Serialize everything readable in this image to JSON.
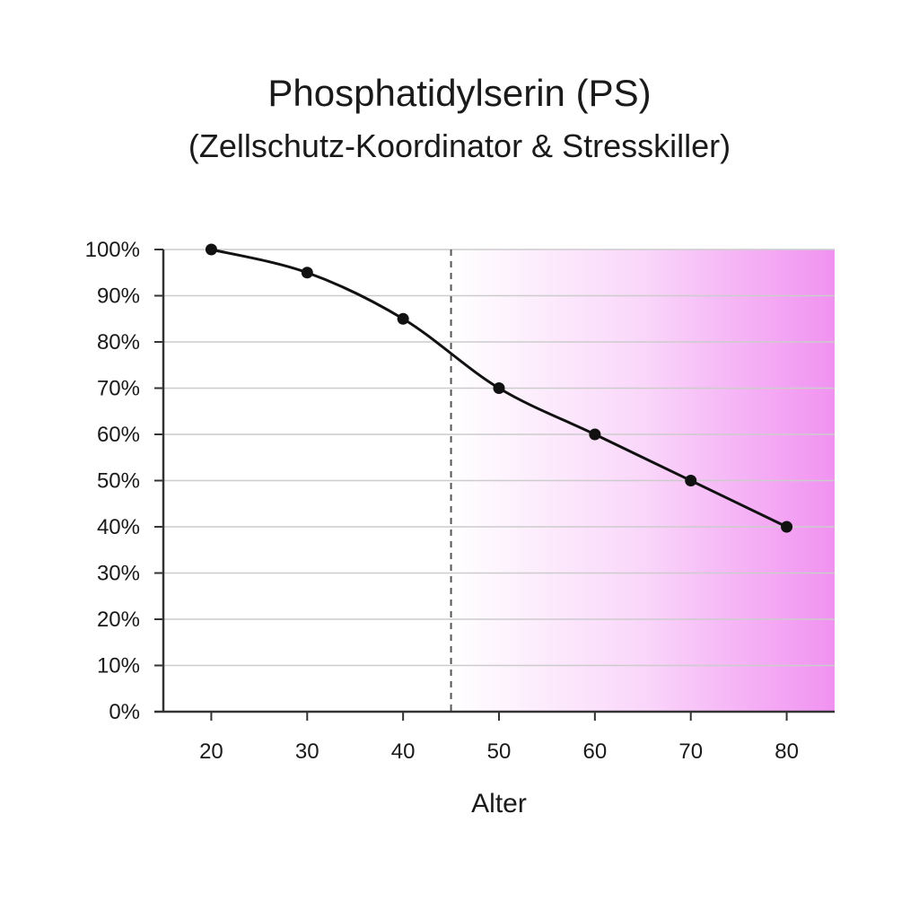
{
  "chart_data": {
    "type": "line",
    "title": "Phosphatidylserin (PS)",
    "subtitle": "(Zellschutz-Koordinator & Stresskiller)",
    "xlabel": "Alter",
    "ylabel": "",
    "x": [
      20,
      30,
      40,
      50,
      60,
      70,
      80
    ],
    "series": [
      {
        "values": [
          100,
          95,
          85,
          70,
          60,
          50,
          40
        ]
      }
    ],
    "xlim": [
      15,
      85
    ],
    "ylim": [
      0,
      100
    ],
    "x_ticks": [
      "20",
      "30",
      "40",
      "50",
      "60",
      "70",
      "80"
    ],
    "y_ticks": [
      "0%",
      "10%",
      "20%",
      "30%",
      "40%",
      "50%",
      "60%",
      "70%",
      "80%",
      "90%",
      "100%"
    ],
    "grid": "horizontal",
    "reference_line_x": 45,
    "shaded_region": {
      "from_x": 45,
      "to_x": 85
    },
    "colors": {
      "line": "#111111",
      "marker": "#111111",
      "grid": "#cccccc",
      "axis": "#333333",
      "reference_line": "#555555",
      "shade": "#f08cf0"
    }
  }
}
